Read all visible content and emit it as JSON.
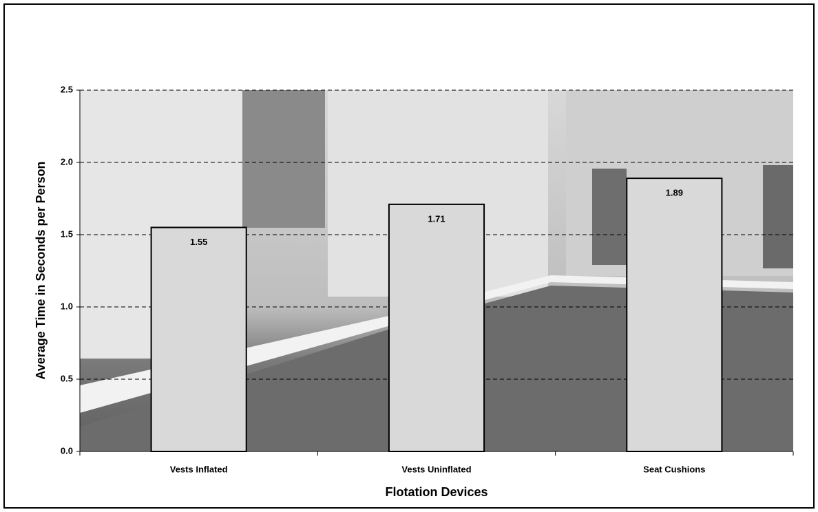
{
  "chart_data": {
    "type": "bar",
    "xlabel": "Flotation Devices",
    "ylabel": "Average Time in Seconds per Person",
    "categories": [
      "Vests Inflated",
      "Vests Uninflated",
      "Seat Cushions"
    ],
    "values": [
      1.55,
      1.71,
      1.89
    ],
    "value_labels": [
      "1.55",
      "1.71",
      "1.89"
    ],
    "color": "#d9d9d9",
    "ylim": [
      0,
      2.5
    ],
    "yticks": [
      {
        "value": 0,
        "label": "0.0"
      },
      {
        "value": 0.5,
        "label": "0.5"
      },
      {
        "value": 1,
        "label": "1.0"
      },
      {
        "value": 1.5,
        "label": "1.5"
      },
      {
        "value": 2,
        "label": "2.0"
      },
      {
        "value": 2.5,
        "label": "2.5"
      }
    ],
    "grid": true
  }
}
